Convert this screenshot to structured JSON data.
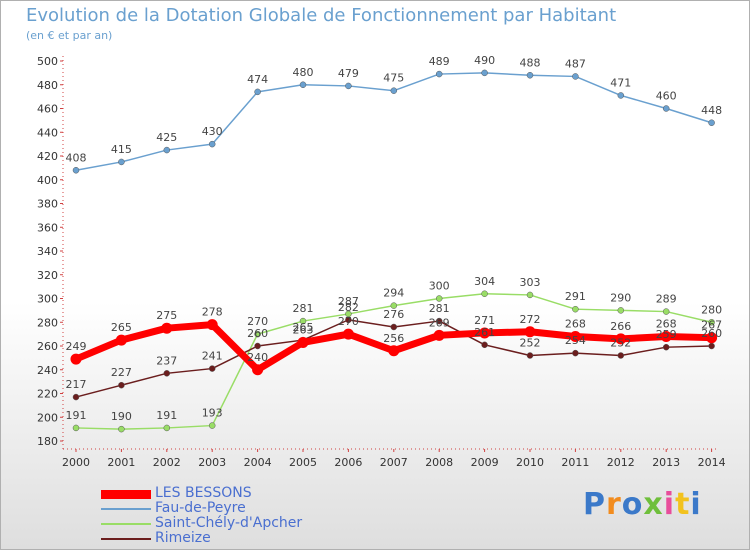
{
  "title": "Evolution de la Dotation Globale de Fonctionnement par Habitant",
  "subtitle": "(en € et par an)",
  "logo_text": "Proxiti",
  "chart_data": {
    "type": "line",
    "title": "Evolution de la Dotation Globale de Fonctionnement par Habitant",
    "subtitle": "(en € et par an)",
    "categories": [
      "2000",
      "2001",
      "2002",
      "2003",
      "2004",
      "2005",
      "2006",
      "2007",
      "2008",
      "2009",
      "2010",
      "2011",
      "2012",
      "2013",
      "2014"
    ],
    "ylim": [
      180,
      500
    ],
    "yticks": [
      180,
      200,
      220,
      240,
      260,
      280,
      300,
      320,
      340,
      360,
      380,
      400,
      420,
      440,
      460,
      480,
      500
    ],
    "grid": false,
    "legend_position": "bottom-left",
    "series": [
      {
        "name": "LES BESSONS",
        "color": "#ff0000",
        "values": [
          249,
          265,
          275,
          278,
          240,
          263,
          270,
          256,
          269,
          271,
          272,
          268,
          266,
          268,
          267
        ]
      },
      {
        "name": "Fau-de-Peyre",
        "color": "#6aa0cf",
        "values": [
          408,
          415,
          425,
          430,
          474,
          480,
          479,
          475,
          489,
          490,
          488,
          487,
          471,
          460,
          448
        ]
      },
      {
        "name": "Saint-Chély-d'Apcher",
        "color": "#99dd66",
        "values": [
          191,
          190,
          191,
          193,
          270,
          281,
          287,
          294,
          300,
          304,
          303,
          291,
          290,
          289,
          280
        ]
      },
      {
        "name": "Rimeize",
        "color": "#6b1e1e",
        "values": [
          217,
          227,
          237,
          241,
          260,
          265,
          282,
          276,
          281,
          261,
          252,
          254,
          252,
          259,
          260
        ]
      }
    ]
  }
}
